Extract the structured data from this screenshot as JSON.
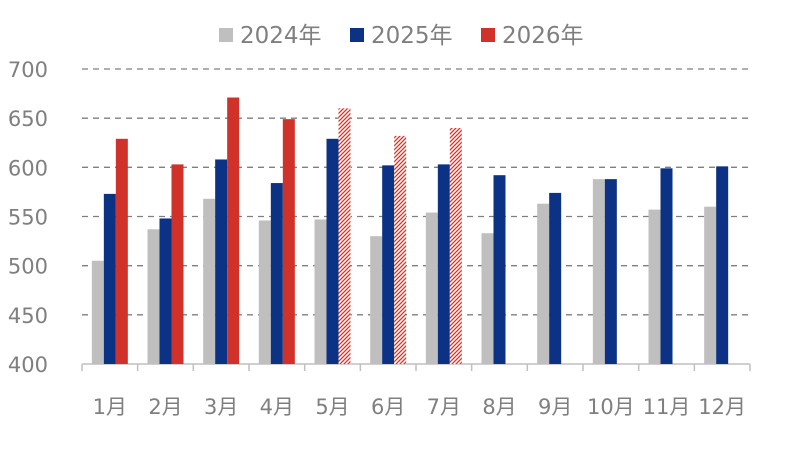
{
  "chart_data": {
    "type": "bar",
    "title": "",
    "xlabel": "",
    "ylabel": "",
    "ylim": [
      400,
      700
    ],
    "yticks": [
      "400",
      "450",
      "500",
      "550",
      "600",
      "650",
      "700"
    ],
    "grid": true,
    "legend_position": "top",
    "categories": [
      "1月",
      "2月",
      "3月",
      "4月",
      "5月",
      "6月",
      "7月",
      "8月",
      "9月",
      "10月",
      "11月",
      "12月"
    ],
    "series": [
      {
        "name": "2024年",
        "color": "#bfbfbf",
        "values": [
          505,
          537,
          568,
          546,
          547,
          530,
          554,
          533,
          563,
          588,
          557,
          560
        ]
      },
      {
        "name": "2025年",
        "color": "#0b3284",
        "values": [
          573,
          548,
          608,
          584,
          629,
          602,
          603,
          592,
          574,
          588,
          599,
          601
        ]
      },
      {
        "name": "2026年",
        "color": "#d0322a",
        "values": [
          629,
          603,
          671,
          649,
          660,
          632,
          640,
          null,
          null,
          null,
          null,
          null
        ],
        "hatched_from_index": 4
      }
    ]
  }
}
